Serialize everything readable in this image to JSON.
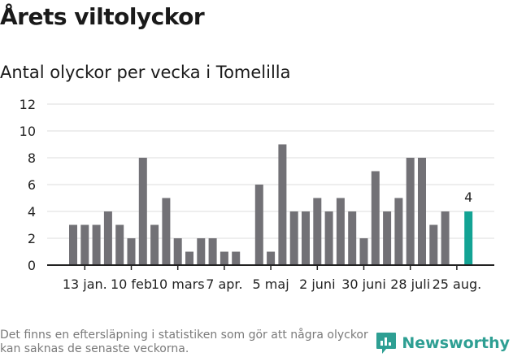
{
  "header": {
    "title": "Årets viltolyckor",
    "subtitle": "Antal olyckor per vecka i Tomelilla"
  },
  "footer": {
    "note": "Det finns en eftersläpning i statistiken som gör att några olyckor kan saknas de senaste veckorna.",
    "brand": "Newsworthy",
    "brand_color": "#2e9f93",
    "logo_icon": "newsworthy-logo-icon"
  },
  "colors": {
    "bar": "#727176",
    "highlight": "#13a394",
    "grid": "#dddddd",
    "axis": "#222222"
  },
  "chart_data": {
    "type": "bar",
    "title": "Antal olyckor per vecka i Tomelilla",
    "xlabel": "",
    "ylabel": "",
    "ylim": [
      0,
      12
    ],
    "yticks": [
      0,
      2,
      4,
      6,
      8,
      10,
      12
    ],
    "grid": true,
    "legend": "none",
    "series": [
      {
        "values": [
          3,
          3,
          3,
          4,
          3,
          2,
          8,
          3,
          5,
          2,
          1,
          2,
          2,
          1,
          1,
          null,
          6,
          1,
          9,
          4,
          4,
          5,
          4,
          5,
          4,
          2,
          7,
          4,
          5,
          8,
          8,
          3,
          4,
          null,
          4
        ]
      }
    ],
    "x_tick_labels": [
      {
        "label": "13 jan.",
        "index": 1
      },
      {
        "label": "10 feb",
        "index": 5
      },
      {
        "label": "10 mars",
        "index": 9
      },
      {
        "label": "7 apr.",
        "index": 13
      },
      {
        "label": "5 maj",
        "index": 17
      },
      {
        "label": "2 juni",
        "index": 21
      },
      {
        "label": "30 juni",
        "index": 25
      },
      {
        "label": "28 juli",
        "index": 29
      },
      {
        "label": "25 aug.",
        "index": 33
      }
    ],
    "highlight": {
      "index": 34,
      "label": "4"
    }
  }
}
